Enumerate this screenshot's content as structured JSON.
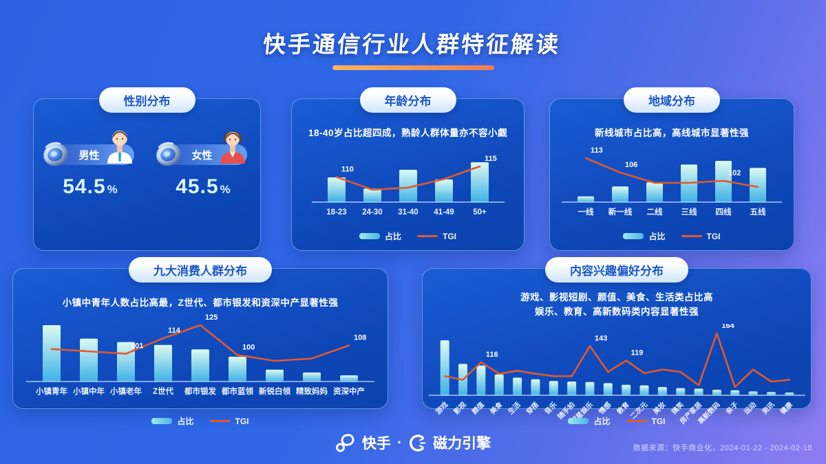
{
  "page": {
    "title": "快手通信行业人群特征解读"
  },
  "chart_data": [
    {
      "id": "gender",
      "type": "kpi",
      "title": "性别分布",
      "items": [
        {
          "icon": "megaphone-icon",
          "label": "男性",
          "value": "54.5",
          "unit": "%"
        },
        {
          "icon": "megaphone-icon",
          "label": "女性",
          "value": "45.5",
          "unit": "%"
        }
      ]
    },
    {
      "id": "age",
      "type": "bar+line",
      "title": "年龄分布",
      "subtitle": "18-40岁占比超四成，熟龄人群体量亦不容小觑",
      "categories": [
        "18-23",
        "24-30",
        "31-40",
        "41-49",
        "50+"
      ],
      "series": [
        {
          "name": "占比",
          "values_rel_pct": [
            62,
            34,
            81,
            57,
            100
          ]
        },
        {
          "name": "TGI",
          "values": [
            110,
            104,
            105,
            109,
            115
          ]
        }
      ],
      "tgi_labeled_indices": [
        0,
        4
      ],
      "legend": {
        "bar": "占比",
        "line": "TGI"
      },
      "legend_position": "inside"
    },
    {
      "id": "region",
      "type": "bar+line",
      "title": "地域分布",
      "subtitle": "新线城市占比高，高线城市显著性强",
      "categories": [
        "一线",
        "新一线",
        "二线",
        "三线",
        "四线",
        "五线"
      ],
      "series": [
        {
          "name": "占比",
          "values_rel_pct": [
            14,
            38,
            48,
            91,
            100,
            83
          ]
        },
        {
          "name": "TGI",
          "values": [
            113,
            106,
            101,
            101,
            102,
            99
          ]
        }
      ],
      "tgi_labeled_indices": [
        0,
        1,
        4
      ],
      "legend": {
        "bar": "占比",
        "line": "TGI"
      },
      "legend_position": "inside"
    },
    {
      "id": "consumer",
      "type": "bar+line",
      "title": "九大消费人群分布",
      "subtitle": "小镇中青年人数占比高最，Z世代、都市银发和资深中产显著性强",
      "categories": [
        "小镇青年",
        "小镇中年",
        "小镇老年",
        "Z世代",
        "都市银发",
        "都市蓝领",
        "新锐白领",
        "精致妈妈",
        "资深中产"
      ],
      "series": [
        {
          "name": "占比",
          "values_rel_pct": [
            100,
            76,
            70,
            65,
            57,
            44,
            21,
            16,
            11
          ]
        },
        {
          "name": "TGI",
          "values": [
            105,
            103,
            101,
            114,
            125,
            100,
            95,
            97,
            108
          ]
        }
      ],
      "tgi_labeled_indices": [
        2,
        3,
        4,
        5,
        8
      ],
      "legend": {
        "bar": "占比",
        "line": "TGI"
      },
      "legend_position": "below"
    },
    {
      "id": "content",
      "type": "bar+line",
      "title": "内容兴趣偏好分布",
      "subtitle_lines": [
        "游戏、影视短剧、颜值、美食、生活类占比高",
        "娱乐、教育、高新数码类内容显著性强"
      ],
      "categories": [
        "游戏",
        "影视",
        "颜值",
        "美食",
        "生活",
        "穿搭",
        "音乐",
        "随手拍",
        "明星娱乐",
        "情感",
        "教育",
        "二次元",
        "美妆",
        "搞笑",
        "房产家居",
        "高新数码",
        "亲子",
        "运动",
        "资讯",
        "健康"
      ],
      "series": [
        {
          "name": "占比",
          "values_rel_pct": [
            100,
            57,
            54,
            38,
            32,
            29,
            26,
            25,
            24,
            22,
            19,
            18,
            15,
            13,
            12,
            10,
            9,
            7,
            6,
            5
          ]
        },
        {
          "name": "TGI",
          "values": [
            93,
            87,
            116,
            97,
            102,
            97,
            93,
            93,
            143,
            100,
            119,
            98,
            104,
            100,
            78,
            164,
            75,
            104,
            84,
            87
          ]
        }
      ],
      "tgi_labeled_indices": [
        2,
        8,
        10,
        15
      ],
      "legend": {
        "bar": "占比",
        "line": "TGI"
      },
      "legend_position": "below"
    }
  ],
  "footer": {
    "brand_left": "快手",
    "separator": "·",
    "brand_right": "磁力引擎",
    "source": "数据来源：快手商业化，2024-01-22 - 2024-02-18"
  },
  "theme": {
    "background_left": "#2b63e2",
    "background_right": "#8f7df2",
    "card": "#0d46b6",
    "bar_top": "#dcfaf2",
    "bar_bottom": "#3fb1e6",
    "tgi_line": "#e2592c",
    "underline": "#f5a055",
    "pill_text": "#1c57c8"
  }
}
